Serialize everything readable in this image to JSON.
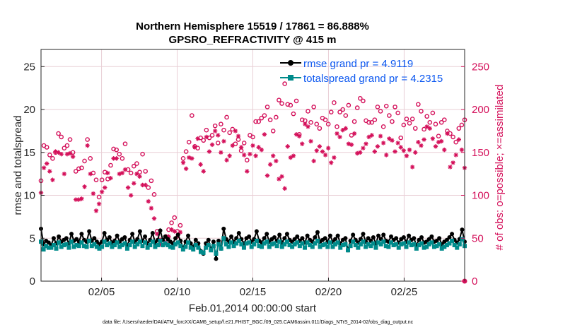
{
  "chart_data": {
    "type": "line",
    "title": "Northern Hemisphere 15519 / 17861 = 86.888%",
    "subtitle": "GPSRO_REFRACTIVITY @ 415 m",
    "xlabel": "Feb.01,2014 00:00:00 start",
    "ylabel": "rmse and totalspread",
    "y2label": "# of obs: o=possible; ×=assimilated",
    "footer": "data file: /Users/raeder/DAI/ATM_forcXX/CAM6_setup/f.e21.FHIST_BGC.f09_025.CAM6assim.011/Diags_NTrS_2014-02/obs_diag_output.nc",
    "x_range_days": [
      1,
      29
    ],
    "ylim": [
      0,
      27
    ],
    "y2lim": [
      0,
      270
    ],
    "yticks": [
      0,
      5,
      10,
      15,
      20,
      25
    ],
    "y2ticks": [
      0,
      50,
      100,
      150,
      200,
      250
    ],
    "xticks": [
      {
        "day": 5,
        "label": "02/05"
      },
      {
        "day": 10,
        "label": "02/10"
      },
      {
        "day": 15,
        "label": "02/15"
      },
      {
        "day": 20,
        "label": "02/20"
      },
      {
        "day": 25,
        "label": "02/25"
      }
    ],
    "series": [
      {
        "name": "rmse grand pr = 4.9119",
        "color": "#000000",
        "values": [
          6.1,
          4.3,
          4.7,
          4.5,
          4.2,
          5.0,
          4.4,
          5.2,
          4.6,
          4.8,
          5.0,
          4.4,
          5.5,
          4.7,
          4.9,
          4.6,
          5.5,
          4.8,
          4.6,
          5.8,
          4.7,
          5.0,
          4.6,
          4.3,
          4.6,
          5.6,
          4.8,
          5.1,
          4.5,
          4.7,
          5.3,
          4.6,
          4.9,
          5.1,
          4.2,
          4.8,
          5.5,
          4.6,
          4.9,
          5.8,
          4.7,
          5.2,
          4.4,
          4.8,
          5.6,
          4.5,
          4.8,
          5.9,
          4.8,
          5.2,
          4.9,
          4.6,
          4.4,
          5.0,
          5.4,
          4.7,
          3.9,
          4.6,
          5.3,
          4.4,
          4.0,
          4.8,
          4.4,
          3.5,
          3.2,
          4.4,
          4.8,
          3.7,
          4.6,
          2.6,
          4.7,
          3.8,
          6.1,
          4.9,
          4.6,
          5.2,
          4.6,
          5.0,
          5.6,
          4.9,
          4.4,
          5.0,
          5.2,
          4.6,
          4.9,
          5.8,
          4.7,
          4.5,
          5.0,
          5.5,
          4.6,
          4.9,
          5.1,
          4.7,
          5.4,
          4.5,
          5.0,
          5.5,
          4.8,
          4.6,
          4.9,
          5.2,
          4.7,
          5.0,
          4.5,
          5.3,
          4.8,
          4.6,
          5.1,
          5.7,
          4.6,
          4.8,
          5.0,
          4.6,
          5.3,
          4.6,
          4.9,
          5.3,
          4.4,
          4.8,
          5.0,
          3.6,
          4.7,
          5.4,
          4.8,
          4.5,
          4.9,
          5.5,
          4.6,
          5.0,
          4.7,
          5.1,
          4.4,
          5.3,
          4.9,
          5.4,
          4.7,
          4.6,
          5.2,
          4.8,
          5.0,
          4.5,
          4.9,
          5.1,
          4.6,
          5.3,
          4.8,
          5.0,
          4.2,
          4.8,
          5.1,
          4.5,
          4.6,
          4.9,
          5.2,
          4.6,
          4.7,
          5.0,
          4.3,
          4.6,
          4.8,
          5.1,
          5.5,
          4.8,
          4.5,
          4.9,
          6.0,
          4.6
        ]
      },
      {
        "name": "totalspread grand pr = 4.2315",
        "color": "#008b8b",
        "values": [
          4.6,
          3.7,
          4.1,
          3.9,
          3.9,
          4.2,
          3.8,
          4.5,
          4.0,
          4.2,
          4.3,
          3.9,
          4.6,
          4.0,
          4.2,
          4.1,
          4.5,
          4.1,
          4.0,
          4.7,
          4.1,
          4.3,
          4.0,
          3.8,
          4.0,
          4.6,
          4.2,
          4.4,
          4.0,
          4.2,
          4.5,
          4.0,
          4.2,
          4.4,
          3.8,
          4.2,
          4.6,
          4.0,
          4.3,
          4.6,
          4.1,
          4.5,
          3.9,
          4.2,
          4.6,
          4.0,
          4.2,
          4.7,
          4.2,
          4.4,
          4.2,
          4.0,
          3.9,
          4.3,
          4.5,
          4.1,
          3.7,
          4.0,
          4.5,
          3.9,
          3.7,
          4.2,
          3.9,
          3.4,
          3.3,
          3.9,
          4.2,
          3.6,
          4.1,
          3.2,
          4.3,
          3.8,
          5.0,
          4.3,
          4.0,
          4.5,
          4.1,
          4.4,
          4.7,
          4.3,
          3.9,
          4.4,
          4.5,
          4.0,
          4.3,
          4.7,
          4.1,
          4.0,
          4.4,
          4.6,
          4.0,
          4.3,
          4.4,
          4.1,
          4.6,
          4.0,
          4.3,
          4.6,
          4.2,
          4.0,
          4.3,
          4.5,
          4.1,
          4.4,
          3.9,
          4.5,
          4.2,
          4.0,
          4.4,
          4.7,
          4.0,
          4.2,
          4.3,
          4.0,
          4.5,
          4.0,
          4.3,
          4.5,
          3.9,
          4.2,
          4.3,
          3.6,
          4.1,
          4.6,
          4.2,
          3.9,
          4.3,
          4.6,
          4.0,
          4.3,
          4.1,
          4.4,
          3.9,
          4.5,
          4.3,
          4.6,
          4.1,
          4.0,
          4.5,
          4.2,
          4.3,
          3.9,
          4.3,
          4.4,
          4.0,
          4.5,
          4.2,
          4.3,
          3.8,
          4.2,
          4.4,
          3.9,
          4.0,
          4.3,
          4.5,
          4.0,
          4.1,
          4.3,
          3.8,
          4.0,
          4.2,
          4.4,
          4.7,
          4.2,
          3.9,
          4.3,
          4.9,
          4.1
        ]
      }
    ],
    "obs_possible": {
      "name": "o=possible",
      "color": "#d4105a",
      "values": [
        117,
        158,
        156,
        147,
        143,
        150,
        172,
        168,
        155,
        158,
        165,
        150,
        128,
        131,
        132,
        140,
        165,
        143,
        126,
        118,
        98,
        118,
        127,
        119,
        135,
        154,
        153,
        148,
        143,
        160,
        130,
        126,
        134,
        137,
        127,
        148,
        128,
        109,
        117,
        101,
        58,
        48,
        46,
        52,
        60,
        68,
        74,
        58,
        65,
        143,
        151,
        162,
        193,
        157,
        155,
        167,
        164,
        176,
        167,
        170,
        181,
        161,
        183,
        176,
        191,
        173,
        177,
        160,
        165,
        152,
        161,
        141,
        170,
        168,
        186,
        186,
        190,
        193,
        203,
        188,
        175,
        191,
        211,
        207,
        230,
        206,
        205,
        195,
        210,
        171,
        188,
        187,
        198,
        185,
        203,
        183,
        178,
        190,
        188,
        183,
        197,
        208,
        180,
        197,
        200,
        193,
        205,
        170,
        186,
        202,
        213,
        210,
        187,
        185,
        185,
        188,
        203,
        198,
        180,
        204,
        193,
        186,
        203,
        196,
        167,
        182,
        189,
        184,
        189,
        178,
        206,
        198,
        177,
        192,
        185,
        196,
        183,
        169,
        185,
        188,
        175,
        172,
        168,
        162,
        178,
        182,
        188
      ]
    },
    "obs_assimilated": {
      "name": "×=assimilated",
      "color": "#d4105a",
      "values": [
        103,
        132,
        137,
        128,
        118,
        151,
        150,
        148,
        125,
        148,
        149,
        145,
        95,
        95,
        96,
        110,
        158,
        125,
        102,
        82,
        90,
        104,
        109,
        126,
        120,
        143,
        143,
        125,
        126,
        130,
        109,
        100,
        114,
        125,
        122,
        112,
        112,
        93,
        85,
        73,
        55,
        43,
        42,
        45,
        52,
        60,
        58,
        52,
        57,
        138,
        131,
        144,
        143,
        156,
        166,
        136,
        128,
        168,
        151,
        159,
        175,
        170,
        150,
        163,
        141,
        146,
        158,
        175,
        169,
        156,
        147,
        128,
        148,
        158,
        146,
        156,
        153,
        171,
        123,
        136,
        146,
        140,
        119,
        122,
        108,
        157,
        144,
        146,
        171,
        169,
        160,
        183,
        180,
        163,
        140,
        152,
        157,
        151,
        147,
        155,
        138,
        144,
        172,
        168,
        176,
        178,
        160,
        159,
        172,
        149,
        150,
        155,
        160,
        168,
        170,
        151,
        157,
        169,
        161,
        147,
        166,
        164,
        151,
        161,
        156,
        152,
        146,
        153,
        133,
        150,
        162,
        158,
        165,
        180,
        178,
        166,
        157,
        162,
        163,
        153,
        172,
        133,
        138,
        147,
        165,
        153,
        132
      ]
    },
    "legend": [
      {
        "label": "rmse grand pr = 4.9119",
        "color": "#000000"
      },
      {
        "label": "totalspread grand pr = 4.2315",
        "color": "#008b8b"
      }
    ],
    "legend_position": "top-right"
  }
}
